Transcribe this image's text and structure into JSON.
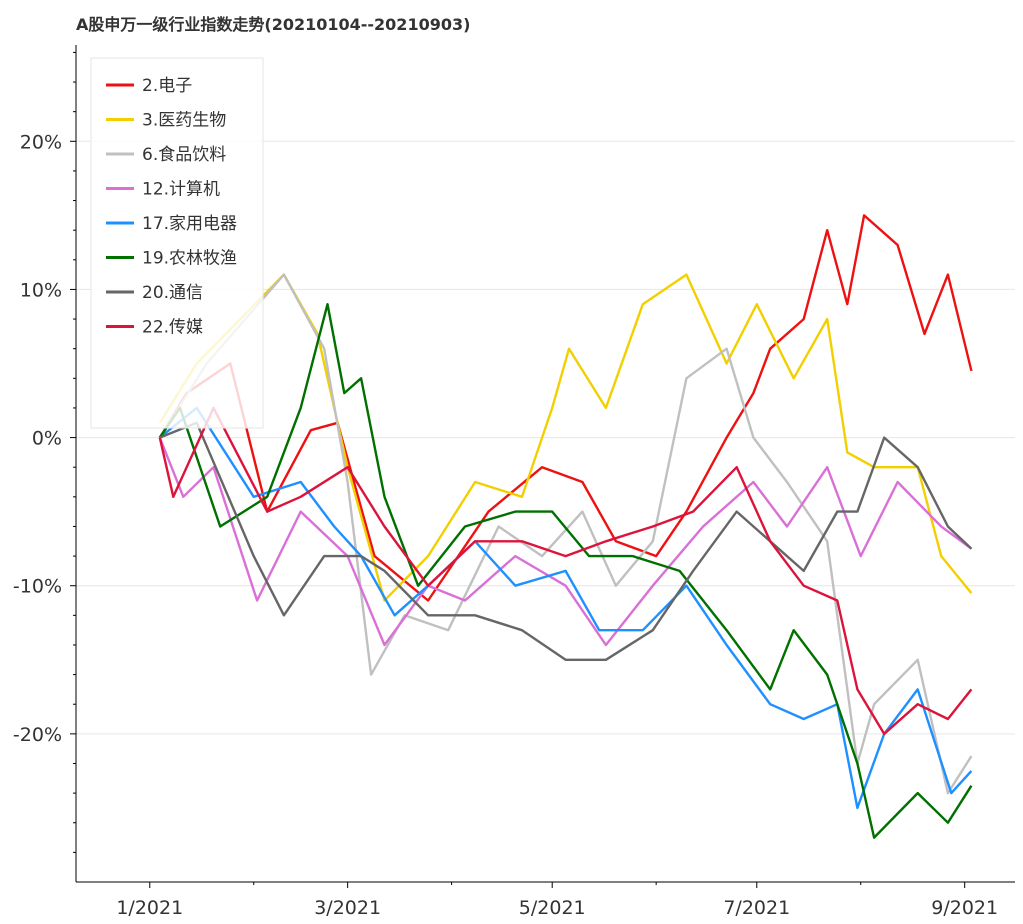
{
  "chart_data": {
    "type": "line",
    "title": "A股申万一级行业指数走势(20210104--20210903)",
    "xlabel": "",
    "ylabel": "",
    "x_ticks": [
      "1/2021",
      "3/2021",
      "5/2021",
      "7/2021",
      "9/2021"
    ],
    "x_tick_dates": [
      "2021-01-01",
      "2021-03-01",
      "2021-05-01",
      "2021-07-01",
      "2021-09-01"
    ],
    "y_ticks": [
      "20%",
      "10%",
      "0%",
      "-10%",
      "-20%"
    ],
    "y_tick_values": [
      20,
      10,
      0,
      -10,
      -20
    ],
    "xlim": [
      "2020-12-10",
      "2021-09-16"
    ],
    "ylim": [
      -30,
      26.5
    ],
    "grid": "horizontal",
    "legend_position": "top-left",
    "series": [
      {
        "name": "2.电子",
        "color": "#ee1111",
        "points": [
          [
            "2021-01-04",
            0
          ],
          [
            "2021-01-12",
            3
          ],
          [
            "2021-01-25",
            5
          ],
          [
            "2021-02-05",
            -5
          ],
          [
            "2021-02-18",
            0.5
          ],
          [
            "2021-02-26",
            1
          ],
          [
            "2021-03-09",
            -8
          ],
          [
            "2021-03-25",
            -11
          ],
          [
            "2021-04-12",
            -5
          ],
          [
            "2021-04-28",
            -2
          ],
          [
            "2021-05-10",
            -3
          ],
          [
            "2021-05-20",
            -7
          ],
          [
            "2021-06-01",
            -8
          ],
          [
            "2021-06-10",
            -5
          ],
          [
            "2021-06-22",
            0
          ],
          [
            "2021-06-30",
            3
          ],
          [
            "2021-07-05",
            6
          ],
          [
            "2021-07-15",
            8
          ],
          [
            "2021-07-22",
            14
          ],
          [
            "2021-07-28",
            9
          ],
          [
            "2021-08-02",
            15
          ],
          [
            "2021-08-12",
            13
          ],
          [
            "2021-08-20",
            7
          ],
          [
            "2021-08-27",
            11
          ],
          [
            "2021-09-03",
            4.5
          ]
        ]
      },
      {
        "name": "3.医药生物",
        "color": "#f2d000",
        "points": [
          [
            "2021-01-04",
            1
          ],
          [
            "2021-01-15",
            5
          ],
          [
            "2021-01-28",
            8
          ],
          [
            "2021-02-10",
            11
          ],
          [
            "2021-02-20",
            7
          ],
          [
            "2021-03-01",
            -2
          ],
          [
            "2021-03-12",
            -11
          ],
          [
            "2021-03-25",
            -8
          ],
          [
            "2021-04-08",
            -3
          ],
          [
            "2021-04-22",
            -4
          ],
          [
            "2021-05-01",
            2
          ],
          [
            "2021-05-06",
            6
          ],
          [
            "2021-05-17",
            2
          ],
          [
            "2021-05-28",
            9
          ],
          [
            "2021-06-10",
            11
          ],
          [
            "2021-06-22",
            5
          ],
          [
            "2021-07-01",
            9
          ],
          [
            "2021-07-12",
            4
          ],
          [
            "2021-07-22",
            8
          ],
          [
            "2021-07-28",
            -1
          ],
          [
            "2021-08-05",
            -2
          ],
          [
            "2021-08-18",
            -2
          ],
          [
            "2021-08-25",
            -8
          ],
          [
            "2021-09-03",
            -10.5
          ]
        ]
      },
      {
        "name": "6.食品饮料",
        "color": "#c0c0c0",
        "points": [
          [
            "2021-01-04",
            0
          ],
          [
            "2021-01-18",
            5
          ],
          [
            "2021-02-10",
            11
          ],
          [
            "2021-02-22",
            6
          ],
          [
            "2021-03-01",
            -3
          ],
          [
            "2021-03-08",
            -16
          ],
          [
            "2021-03-18",
            -12
          ],
          [
            "2021-03-31",
            -13
          ],
          [
            "2021-04-15",
            -6
          ],
          [
            "2021-04-28",
            -8
          ],
          [
            "2021-05-10",
            -5
          ],
          [
            "2021-05-20",
            -10
          ],
          [
            "2021-05-31",
            -7
          ],
          [
            "2021-06-10",
            4
          ],
          [
            "2021-06-22",
            6
          ],
          [
            "2021-06-30",
            0
          ],
          [
            "2021-07-10",
            -3
          ],
          [
            "2021-07-22",
            -7
          ],
          [
            "2021-07-31",
            -22
          ],
          [
            "2021-08-05",
            -18
          ],
          [
            "2021-08-18",
            -15
          ],
          [
            "2021-08-27",
            -24
          ],
          [
            "2021-09-03",
            -21.5
          ]
        ]
      },
      {
        "name": "12.计算机",
        "color": "#da70d6",
        "points": [
          [
            "2021-01-04",
            0
          ],
          [
            "2021-01-11",
            -4
          ],
          [
            "2021-01-20",
            -2
          ],
          [
            "2021-02-02",
            -11
          ],
          [
            "2021-02-15",
            -5
          ],
          [
            "2021-03-01",
            -8
          ],
          [
            "2021-03-12",
            -14
          ],
          [
            "2021-03-25",
            -10
          ],
          [
            "2021-04-05",
            -11
          ],
          [
            "2021-04-20",
            -8
          ],
          [
            "2021-05-05",
            -10
          ],
          [
            "2021-05-17",
            -14
          ],
          [
            "2021-05-31",
            -10
          ],
          [
            "2021-06-15",
            -6
          ],
          [
            "2021-06-30",
            -3
          ],
          [
            "2021-07-10",
            -6
          ],
          [
            "2021-07-22",
            -2
          ],
          [
            "2021-08-01",
            -8
          ],
          [
            "2021-08-12",
            -3
          ],
          [
            "2021-08-25",
            -6
          ],
          [
            "2021-09-03",
            -7.5
          ]
        ]
      },
      {
        "name": "17.家用电器",
        "color": "#1e90ff",
        "points": [
          [
            "2021-01-04",
            0
          ],
          [
            "2021-01-15",
            2
          ],
          [
            "2021-02-01",
            -4
          ],
          [
            "2021-02-15",
            -3
          ],
          [
            "2021-02-25",
            -6
          ],
          [
            "2021-03-05",
            -8
          ],
          [
            "2021-03-15",
            -12
          ],
          [
            "2021-03-25",
            -10
          ],
          [
            "2021-04-08",
            -7
          ],
          [
            "2021-04-20",
            -10
          ],
          [
            "2021-05-05",
            -9
          ],
          [
            "2021-05-15",
            -13
          ],
          [
            "2021-05-28",
            -13
          ],
          [
            "2021-06-10",
            -10
          ],
          [
            "2021-06-22",
            -14
          ],
          [
            "2021-07-05",
            -18
          ],
          [
            "2021-07-15",
            -19
          ],
          [
            "2021-07-25",
            -18
          ],
          [
            "2021-07-31",
            -25
          ],
          [
            "2021-08-08",
            -20
          ],
          [
            "2021-08-18",
            -17
          ],
          [
            "2021-08-28",
            -24
          ],
          [
            "2021-09-03",
            -22.5
          ]
        ]
      },
      {
        "name": "19.农林牧渔",
        "color": "#007000",
        "points": [
          [
            "2021-01-04",
            0
          ],
          [
            "2021-01-10",
            2
          ],
          [
            "2021-01-22",
            -6
          ],
          [
            "2021-02-05",
            -4
          ],
          [
            "2021-02-15",
            2
          ],
          [
            "2021-02-23",
            9
          ],
          [
            "2021-02-28",
            3
          ],
          [
            "2021-03-05",
            4
          ],
          [
            "2021-03-12",
            -4
          ],
          [
            "2021-03-22",
            -10
          ],
          [
            "2021-04-05",
            -6
          ],
          [
            "2021-04-20",
            -5
          ],
          [
            "2021-05-01",
            -5
          ],
          [
            "2021-05-12",
            -8
          ],
          [
            "2021-05-25",
            -8
          ],
          [
            "2021-06-08",
            -9
          ],
          [
            "2021-06-22",
            -13
          ],
          [
            "2021-07-05",
            -17
          ],
          [
            "2021-07-12",
            -13
          ],
          [
            "2021-07-22",
            -16
          ],
          [
            "2021-07-31",
            -22
          ],
          [
            "2021-08-05",
            -27
          ],
          [
            "2021-08-18",
            -24
          ],
          [
            "2021-08-27",
            -26
          ],
          [
            "2021-09-03",
            -23.5
          ]
        ]
      },
      {
        "name": "20.通信",
        "color": "#666666",
        "points": [
          [
            "2021-01-04",
            0
          ],
          [
            "2021-01-15",
            1
          ],
          [
            "2021-02-01",
            -8
          ],
          [
            "2021-02-10",
            -12
          ],
          [
            "2021-02-22",
            -8
          ],
          [
            "2021-03-05",
            -8
          ],
          [
            "2021-03-12",
            -9
          ],
          [
            "2021-03-25",
            -12
          ],
          [
            "2021-04-08",
            -12
          ],
          [
            "2021-04-22",
            -13
          ],
          [
            "2021-05-05",
            -15
          ],
          [
            "2021-05-17",
            -15
          ],
          [
            "2021-05-31",
            -13
          ],
          [
            "2021-06-12",
            -9
          ],
          [
            "2021-06-25",
            -5
          ],
          [
            "2021-07-05",
            -7
          ],
          [
            "2021-07-15",
            -9
          ],
          [
            "2021-07-25",
            -5
          ],
          [
            "2021-07-31",
            -5
          ],
          [
            "2021-08-08",
            0
          ],
          [
            "2021-08-18",
            -2
          ],
          [
            "2021-08-27",
            -6
          ],
          [
            "2021-09-03",
            -7.5
          ]
        ]
      },
      {
        "name": "22.传媒",
        "color": "#dc143c",
        "points": [
          [
            "2021-01-04",
            0
          ],
          [
            "2021-01-08",
            -4
          ],
          [
            "2021-01-20",
            2
          ],
          [
            "2021-02-05",
            -5
          ],
          [
            "2021-02-15",
            -4
          ],
          [
            "2021-03-01",
            -2
          ],
          [
            "2021-03-12",
            -6
          ],
          [
            "2021-03-25",
            -10
          ],
          [
            "2021-04-08",
            -7
          ],
          [
            "2021-04-22",
            -7
          ],
          [
            "2021-05-05",
            -8
          ],
          [
            "2021-05-17",
            -7
          ],
          [
            "2021-05-31",
            -6
          ],
          [
            "2021-06-12",
            -5
          ],
          [
            "2021-06-25",
            -2
          ],
          [
            "2021-07-05",
            -7
          ],
          [
            "2021-07-15",
            -10
          ],
          [
            "2021-07-25",
            -11
          ],
          [
            "2021-07-31",
            -17
          ],
          [
            "2021-08-08",
            -20
          ],
          [
            "2021-08-18",
            -18
          ],
          [
            "2021-08-27",
            -19
          ],
          [
            "2021-09-03",
            -17
          ]
        ]
      }
    ]
  }
}
